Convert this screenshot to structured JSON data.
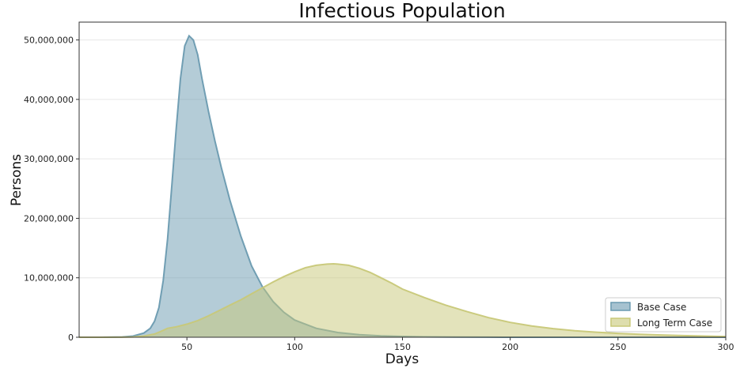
{
  "chart_data": {
    "type": "area",
    "title": "Infectious Population",
    "xlabel": "Days",
    "ylabel": "Persons",
    "xlim": [
      0,
      300
    ],
    "ylim": [
      0,
      53000000
    ],
    "xticks": [
      50,
      100,
      150,
      200,
      250,
      300
    ],
    "xtick_labels": [
      "50",
      "100",
      "150",
      "200",
      "250",
      "300"
    ],
    "yticks": [
      0,
      10000000,
      20000000,
      30000000,
      40000000,
      50000000
    ],
    "ytick_labels": [
      "0",
      "10,000,000",
      "20,000,000",
      "30,000,000",
      "40,000,000",
      "50,000,000"
    ],
    "grid": true,
    "legend": "bottom-right",
    "series": [
      {
        "name": "Base Case",
        "color": "#6a9ab0",
        "x": [
          0,
          10,
          20,
          25,
          30,
          33,
          35,
          37,
          39,
          41,
          43,
          45,
          47,
          49,
          51,
          53,
          55,
          57,
          60,
          63,
          66,
          70,
          75,
          80,
          85,
          90,
          95,
          100,
          110,
          120,
          130,
          140,
          150,
          160,
          175,
          190,
          200,
          220,
          250,
          280,
          300
        ],
        "y": [
          0,
          5000,
          50000,
          200000,
          700000,
          1500000,
          2700000,
          5000000,
          9500000,
          16500000,
          25500000,
          35000000,
          43500000,
          49000000,
          50700000,
          50000000,
          47500000,
          43500000,
          38000000,
          33000000,
          28500000,
          23000000,
          17000000,
          12000000,
          8500000,
          6000000,
          4200000,
          2900000,
          1500000,
          800000,
          420000,
          230000,
          130000,
          70000,
          30000,
          10000,
          5000,
          1000,
          0,
          0,
          0
        ]
      },
      {
        "name": "Long Term Case",
        "color": "#c8c878",
        "x": [
          0,
          10,
          20,
          25,
          30,
          35,
          38,
          41,
          45,
          50,
          55,
          60,
          65,
          70,
          75,
          80,
          85,
          90,
          95,
          100,
          105,
          110,
          115,
          118,
          120,
          125,
          130,
          135,
          140,
          145,
          150,
          160,
          170,
          180,
          190,
          200,
          210,
          220,
          230,
          240,
          250,
          260,
          270,
          280,
          290,
          300
        ],
        "y": [
          0,
          2000,
          15000,
          50000,
          200000,
          550000,
          1000000,
          1500000,
          1750000,
          2200000,
          2800000,
          3600000,
          4500000,
          5400000,
          6300000,
          7300000,
          8300000,
          9300000,
          10200000,
          11000000,
          11700000,
          12100000,
          12300000,
          12350000,
          12300000,
          12100000,
          11600000,
          10900000,
          10000000,
          9100000,
          8100000,
          6700000,
          5400000,
          4300000,
          3300000,
          2500000,
          1900000,
          1450000,
          1100000,
          850000,
          650000,
          500000,
          380000,
          280000,
          200000,
          120000
        ]
      }
    ]
  }
}
